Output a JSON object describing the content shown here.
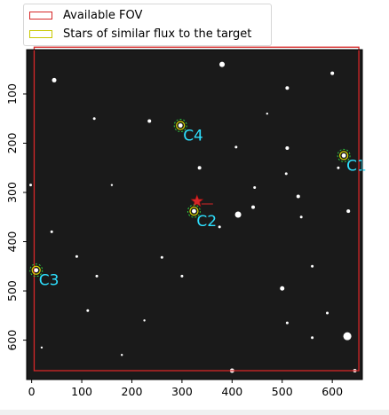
{
  "chart_data": {
    "type": "scatter",
    "xlim": [
      -10,
      660
    ],
    "ylim": [
      680,
      10
    ],
    "x_ticks": [
      0,
      100,
      200,
      300,
      400,
      500,
      600
    ],
    "y_ticks": [
      100,
      200,
      300,
      400,
      500,
      600
    ],
    "legend": {
      "placement": "top-left above axes",
      "entries": [
        {
          "label": "Available FOV",
          "color": "#d62728"
        },
        {
          "label": "Stars of similar flux to the target",
          "color": "#c8c800"
        }
      ]
    },
    "fov_rect": {
      "x0": 5,
      "y0": 5,
      "x1": 653,
      "y1": 662
    },
    "target": {
      "x": 330,
      "y": 318,
      "color": "#d62728"
    },
    "comparison_stars": [
      {
        "label": "C1",
        "x": 623,
        "y": 225
      },
      {
        "label": "C2",
        "x": 324,
        "y": 338
      },
      {
        "label": "C3",
        "x": 9,
        "y": 458
      },
      {
        "label": "C4",
        "x": 297,
        "y": 164
      }
    ],
    "background_stars": [
      {
        "x": 380,
        "y": 40,
        "s": 3
      },
      {
        "x": 45,
        "y": 72,
        "s": 2.5
      },
      {
        "x": 510,
        "y": 88,
        "s": 2
      },
      {
        "x": 600,
        "y": 58,
        "s": 2
      },
      {
        "x": 125,
        "y": 150,
        "s": 1.5
      },
      {
        "x": 235,
        "y": 155,
        "s": 2
      },
      {
        "x": 335,
        "y": 250,
        "s": 2
      },
      {
        "x": 408,
        "y": 208,
        "s": 1.5
      },
      {
        "x": 445,
        "y": 290,
        "s": 1.5
      },
      {
        "x": 508,
        "y": 262,
        "s": 1.5
      },
      {
        "x": 510,
        "y": 210,
        "s": 2
      },
      {
        "x": 532,
        "y": 308,
        "s": 2
      },
      {
        "x": 612,
        "y": 250,
        "s": 1.5
      },
      {
        "x": 412,
        "y": 345,
        "s": 3.5
      },
      {
        "x": 442,
        "y": 330,
        "s": 2
      },
      {
        "x": 538,
        "y": 350,
        "s": 1.5
      },
      {
        "x": 375,
        "y": 370,
        "s": 1.5
      },
      {
        "x": 632,
        "y": 338,
        "s": 2
      },
      {
        "x": 90,
        "y": 430,
        "s": 1.5
      },
      {
        "x": 40,
        "y": 380,
        "s": 1.5
      },
      {
        "x": 130,
        "y": 470,
        "s": 1.5
      },
      {
        "x": 500,
        "y": 495,
        "s": 2.5
      },
      {
        "x": 560,
        "y": 450,
        "s": 1.5
      },
      {
        "x": 112,
        "y": 540,
        "s": 1.5
      },
      {
        "x": 590,
        "y": 545,
        "s": 1.5
      },
      {
        "x": 560,
        "y": 595,
        "s": 1.5
      },
      {
        "x": 630,
        "y": 592,
        "s": 4.5
      },
      {
        "x": 400,
        "y": 662,
        "s": 2.5
      },
      {
        "x": 645,
        "y": 662,
        "s": 2
      },
      {
        "x": 510,
        "y": 565,
        "s": 1.5
      },
      {
        "x": 260,
        "y": 432,
        "s": 1.5
      },
      {
        "x": 300,
        "y": 470,
        "s": 1.5
      },
      {
        "x": 225,
        "y": 560,
        "s": 1.2
      },
      {
        "x": 20,
        "y": 615,
        "s": 1.2
      },
      {
        "x": -2,
        "y": 285,
        "s": 1.5
      },
      {
        "x": 180,
        "y": 630,
        "s": 1.2
      },
      {
        "x": 470,
        "y": 140,
        "s": 1.2
      },
      {
        "x": 160,
        "y": 285,
        "s": 1.2
      }
    ]
  }
}
